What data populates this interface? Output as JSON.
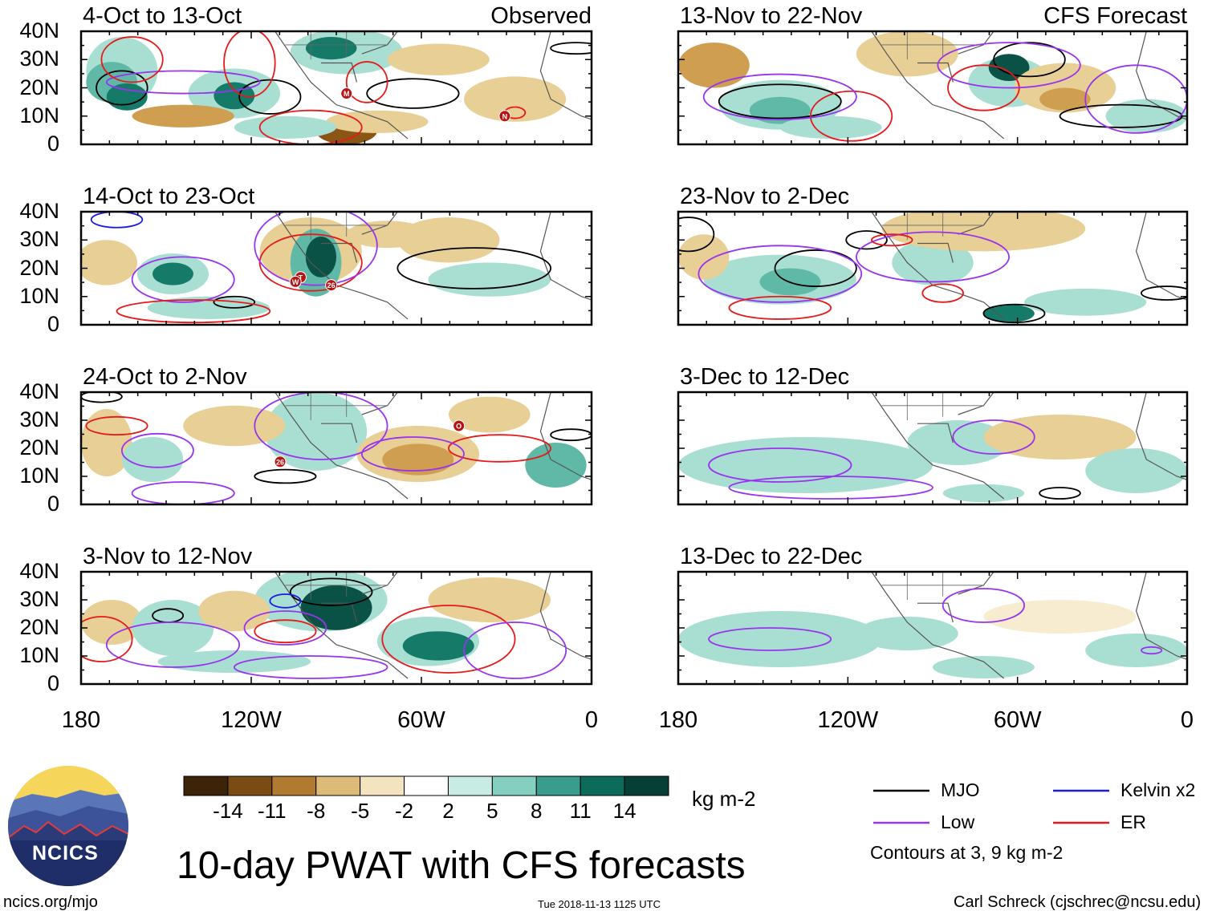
{
  "panels": [
    {
      "title": "4-Oct to 13-Oct",
      "tag": "Observed"
    },
    {
      "title": "14-Oct to 23-Oct",
      "tag": ""
    },
    {
      "title": "24-Oct to 2-Nov",
      "tag": ""
    },
    {
      "title": "3-Nov to 12-Nov",
      "tag": ""
    },
    {
      "title": "13-Nov to 22-Nov",
      "tag": "CFS Forecast"
    },
    {
      "title": "23-Nov to 2-Dec",
      "tag": ""
    },
    {
      "title": "3-Dec to 12-Dec",
      "tag": ""
    },
    {
      "title": "13-Dec to 22-Dec",
      "tag": ""
    }
  ],
  "lat_labels": [
    "40N",
    "30N",
    "20N",
    "10N",
    "0"
  ],
  "lon_labels": [
    "180",
    "120W",
    "60W",
    "0"
  ],
  "colorbar": {
    "colors": [
      "#3d2408",
      "#7a4b12",
      "#b07a30",
      "#dcbb78",
      "#f4e3bf",
      "#ffffff",
      "#c8ebe3",
      "#85cfc0",
      "#3a9c8c",
      "#0d6b5c",
      "#053f36"
    ],
    "labels": [
      "-14",
      "-11",
      "-8",
      "-5",
      "-2",
      "2",
      "5",
      "8",
      "11",
      "14"
    ],
    "units": "kg m-2"
  },
  "legend": {
    "items": [
      {
        "label": "MJO",
        "color": "#000000"
      },
      {
        "label": "Kelvin x2",
        "color": "#1a1ae6"
      },
      {
        "label": "Low",
        "color": "#9933ee"
      },
      {
        "label": "ER",
        "color": "#e61a1a"
      }
    ],
    "note": "Contours at 3, 9 kg m-2"
  },
  "logo_text": "NCICS",
  "title": "10-day PWAT with CFS forecasts",
  "footer": {
    "url": "ncics.org/mjo",
    "timestamp": "Tue 2018-11-13 1125 UTC",
    "author": "Carl Schreck (cjschrec@ncsu.edu)"
  },
  "storm_markers": [
    {
      "panel": 0,
      "label": "M"
    },
    {
      "panel": 0,
      "label": "N"
    },
    {
      "panel": 1,
      "label": "T"
    },
    {
      "panel": 1,
      "label": "W"
    },
    {
      "panel": 1,
      "label": "26"
    },
    {
      "panel": 2,
      "label": "O"
    },
    {
      "panel": 2,
      "label": "26"
    }
  ]
}
